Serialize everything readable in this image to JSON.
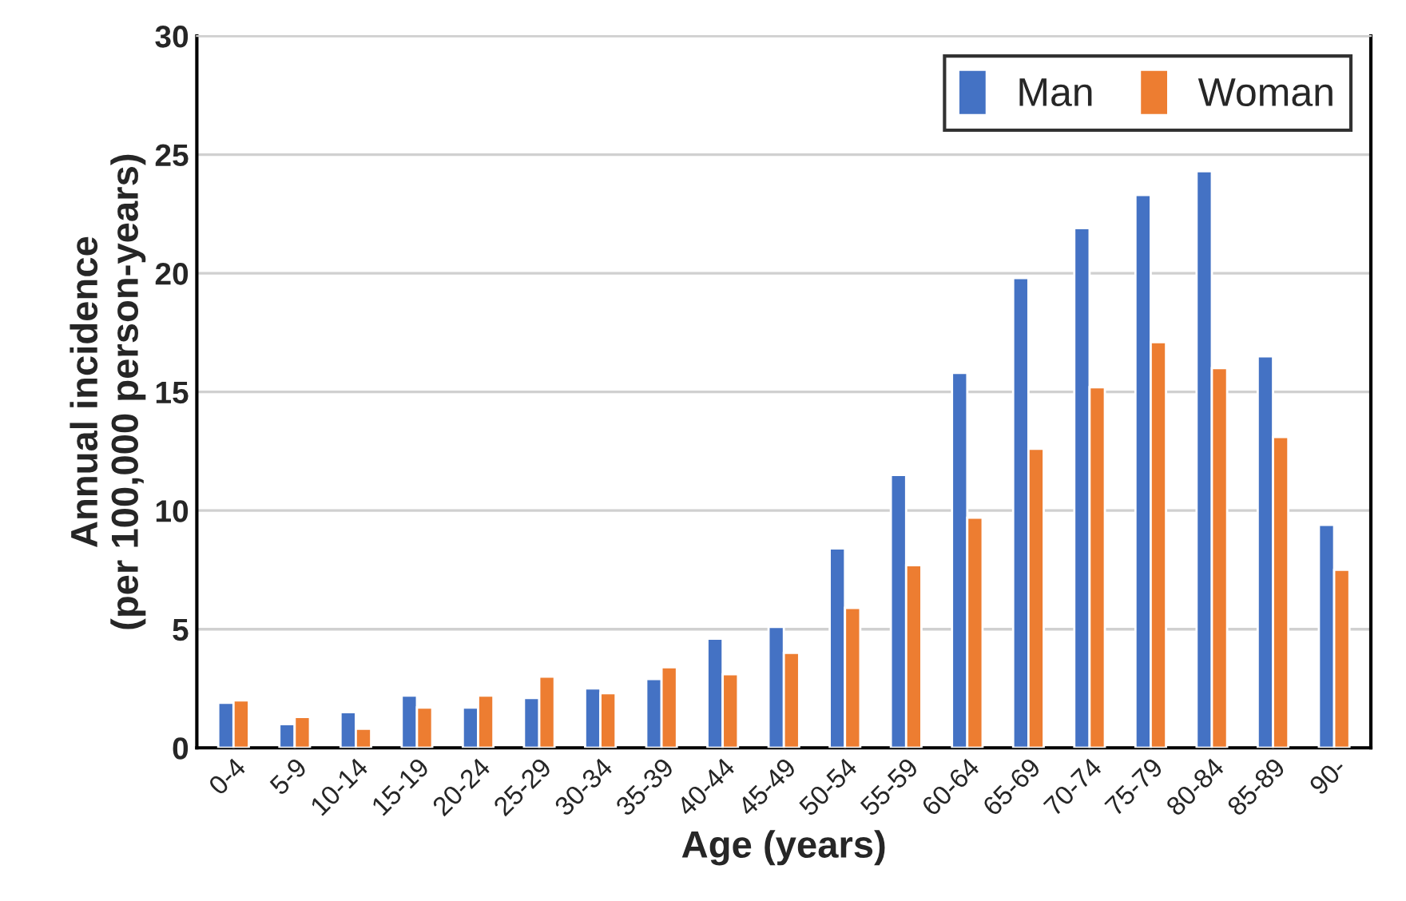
{
  "chart_data": {
    "type": "bar",
    "xlabel": "Age (years)",
    "ylabel": "Annual incidence\n(per 100,000 person-years)",
    "categories": [
      "0-4",
      "5-9",
      "10-14",
      "15-19",
      "20-24",
      "25-29",
      "30-34",
      "35-39",
      "40-44",
      "45-49",
      "50-54",
      "55-59",
      "60-64",
      "65-69",
      "70-74",
      "75-79",
      "80-84",
      "85-89",
      "90-"
    ],
    "series": [
      {
        "name": "Man",
        "color": "#4472c4",
        "values": [
          1.9,
          1.0,
          1.5,
          2.2,
          1.7,
          2.1,
          2.5,
          2.9,
          4.6,
          5.1,
          8.4,
          11.5,
          15.8,
          19.8,
          21.9,
          23.3,
          24.3,
          16.5,
          9.4
        ]
      },
      {
        "name": "Woman",
        "color": "#ed7d31",
        "values": [
          2.0,
          1.3,
          0.8,
          1.7,
          2.2,
          3.0,
          2.3,
          3.4,
          3.1,
          4.0,
          5.9,
          7.7,
          9.7,
          12.6,
          15.2,
          17.1,
          16.0,
          13.1,
          7.5
        ]
      }
    ],
    "ylim": [
      0,
      30
    ],
    "yticks": [
      0,
      5,
      10,
      15,
      20,
      25,
      30
    ],
    "grid": "y",
    "legend": "top right"
  }
}
